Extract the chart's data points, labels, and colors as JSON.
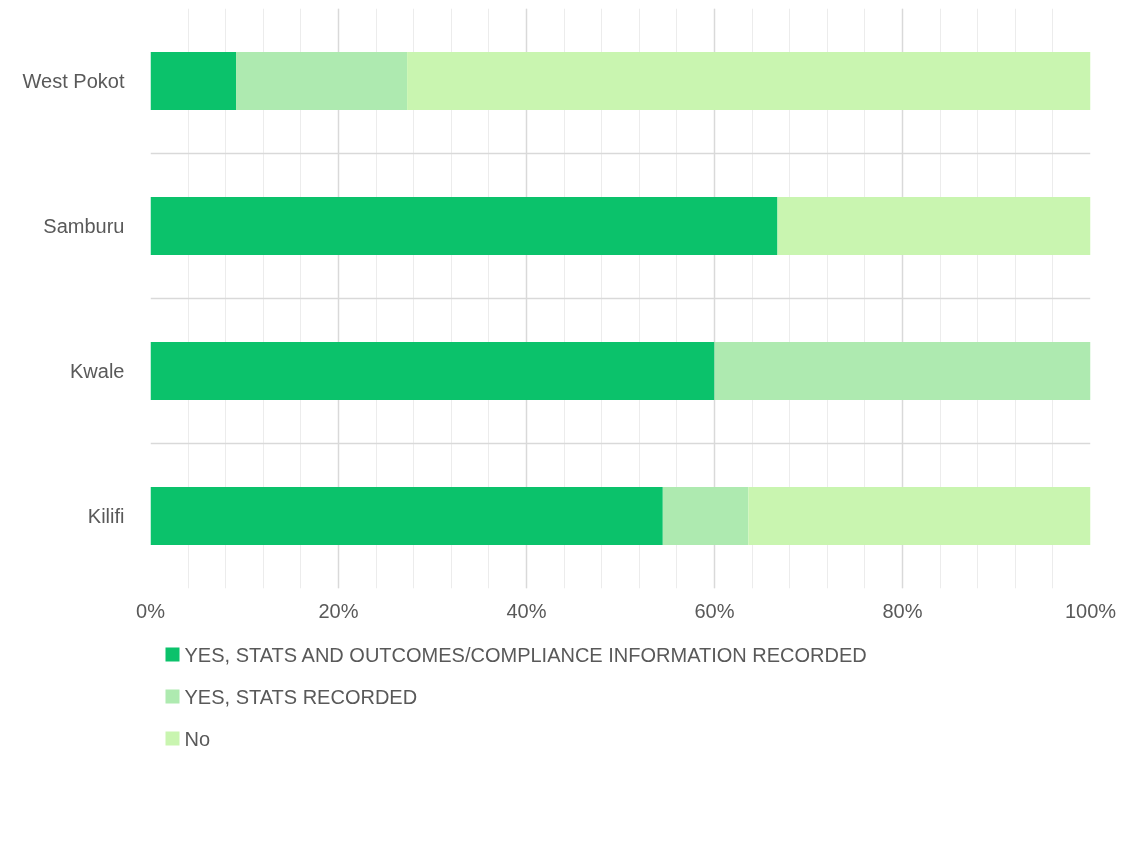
{
  "chart_data": {
    "type": "bar",
    "orientation": "horizontal",
    "stacked": true,
    "categories": [
      "West Pokot",
      "Samburu",
      "Kwale",
      "Kilifi"
    ],
    "series": [
      {
        "name": "YES, STATS AND OUTCOMES/COMPLIANCE INFORMATION RECORDED",
        "color": "#0bc26b",
        "values": [
          9.1,
          66.7,
          60,
          54.5
        ]
      },
      {
        "name": "YES, STATS RECORDED",
        "color": "#aeeab0",
        "values": [
          18.2,
          0,
          40,
          9.1
        ]
      },
      {
        "name": "No",
        "color": "#c9f5b0",
        "values": [
          72.7,
          33.3,
          0,
          36.4
        ]
      }
    ],
    "xlim": [
      0,
      100
    ],
    "xticks": [
      {
        "value": 0,
        "label": "0%"
      },
      {
        "value": 20,
        "label": "20%"
      },
      {
        "value": 40,
        "label": "40%"
      },
      {
        "value": 60,
        "label": "60%"
      },
      {
        "value": 80,
        "label": "80%"
      },
      {
        "value": 100,
        "label": "100%"
      }
    ],
    "grid": true,
    "legend": "bottom"
  }
}
